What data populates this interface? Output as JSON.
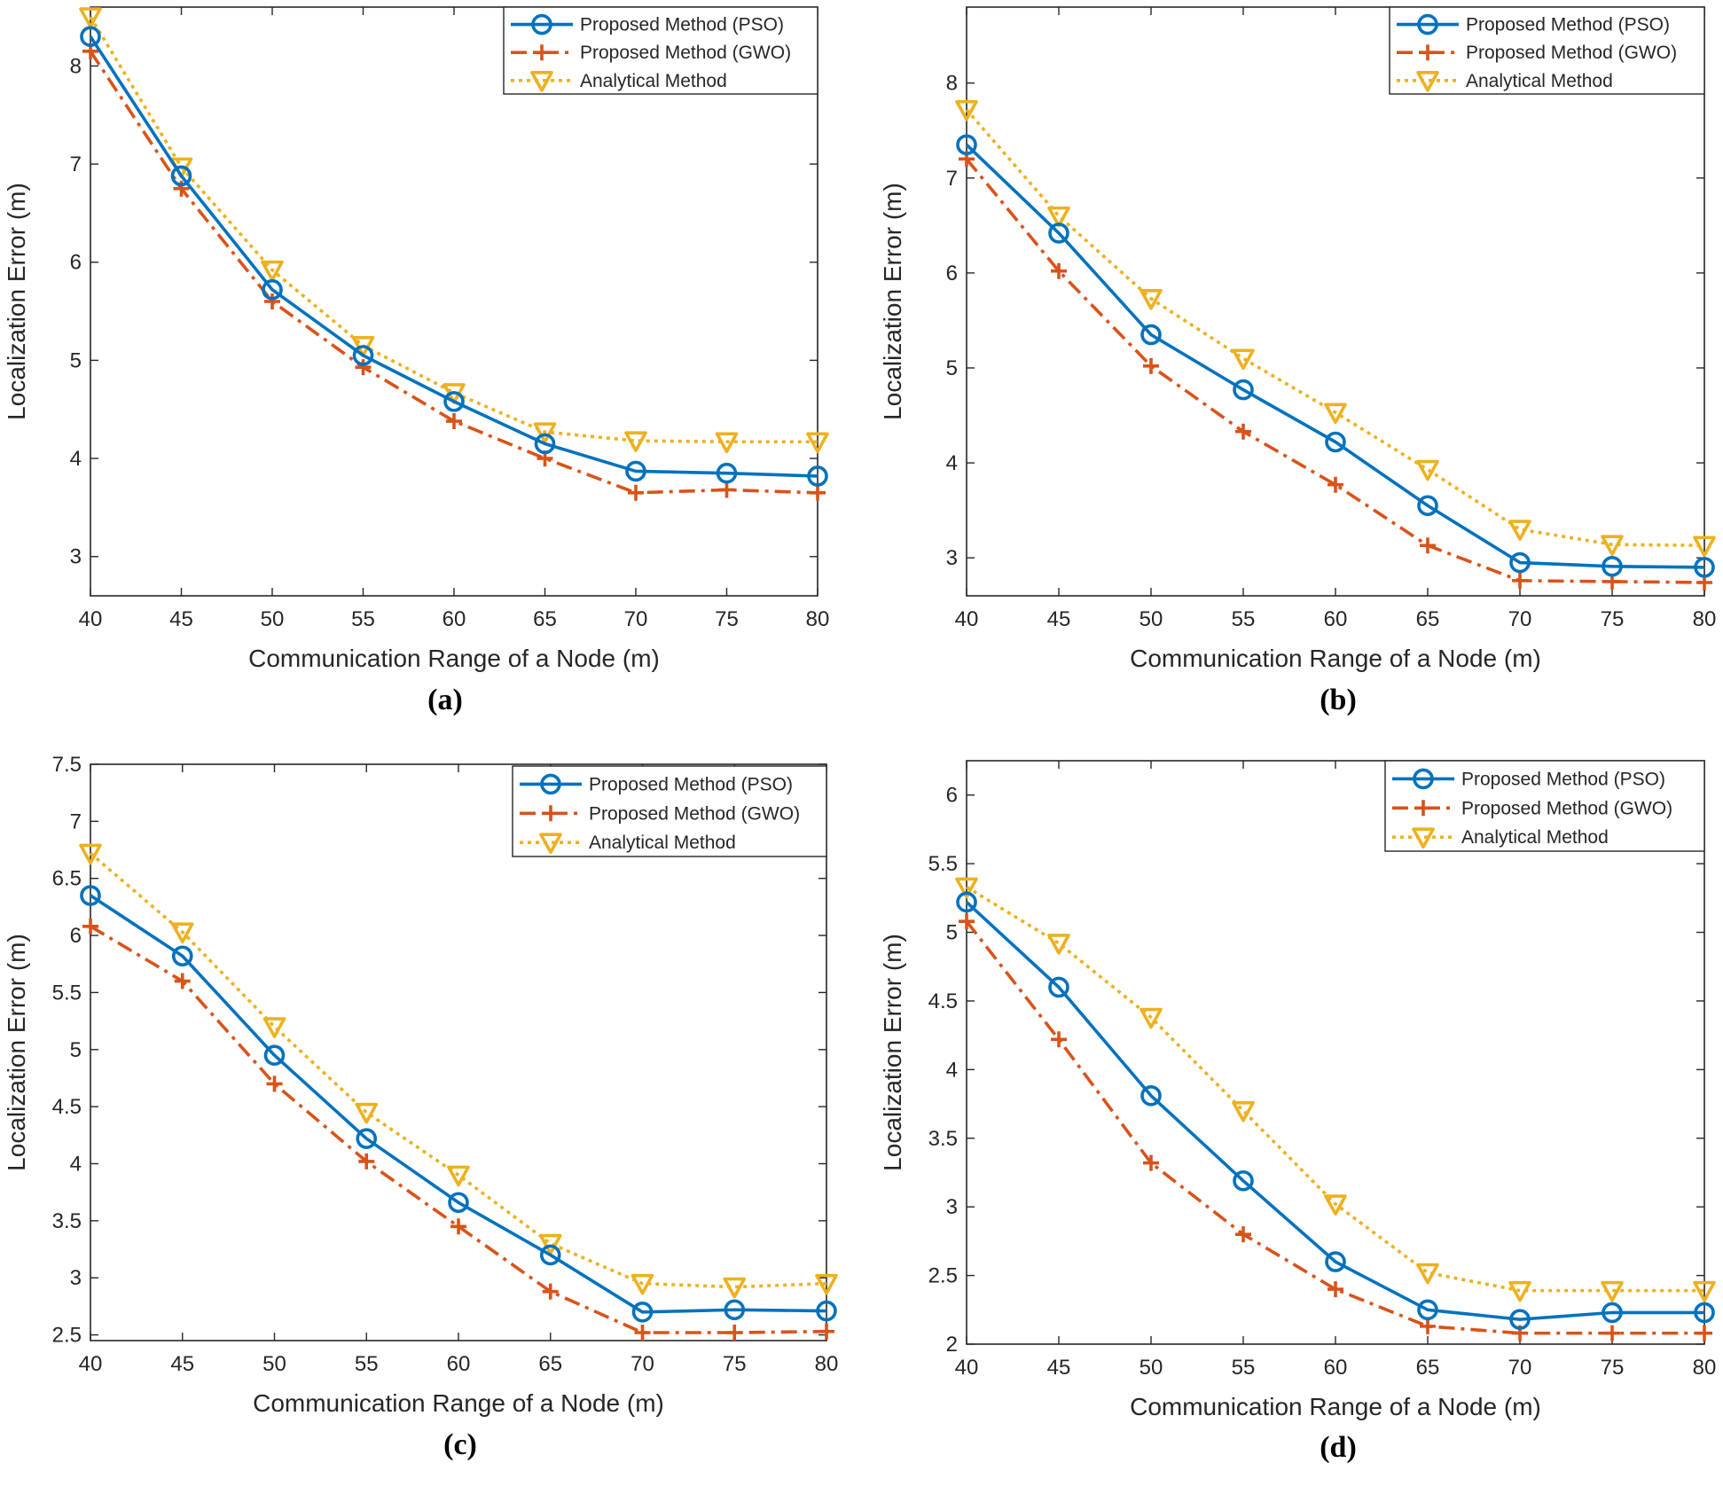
{
  "figure": {
    "x_label": "Communication Range of a Node (m)",
    "y_label": "Localization Error (m)"
  },
  "series_styles": [
    {
      "name": "Proposed Method (PSO)",
      "color": "#0072BD",
      "marker": "circle",
      "dash": "solid"
    },
    {
      "name": "Proposed Method (GWO)",
      "color": "#D95319",
      "marker": "plus",
      "dash": "dashdot"
    },
    {
      "name": "Analytical Method",
      "color": "#EDB120",
      "marker": "triangle-down",
      "dash": "dotted"
    }
  ],
  "chart_data": [
    {
      "type": "line",
      "caption": "(a)",
      "xlabel": "Communication Range of a Node (m)",
      "ylabel": "Localization Error (m)",
      "x": [
        40,
        45,
        50,
        55,
        60,
        65,
        70,
        75,
        80
      ],
      "xlim": [
        40,
        80
      ],
      "ylim": [
        2.6,
        8.6
      ],
      "xticks": [
        "40",
        "45",
        "50",
        "55",
        "60",
        "65",
        "70",
        "75",
        "80"
      ],
      "yticks": [
        "3",
        "4",
        "5",
        "6",
        "7",
        "8"
      ],
      "legend": "top-right",
      "grid": false,
      "series": [
        {
          "name": "Proposed Method (PSO)",
          "values": [
            8.3,
            6.88,
            5.72,
            5.05,
            4.58,
            4.15,
            3.87,
            3.85,
            3.82
          ]
        },
        {
          "name": "Proposed Method (GWO)",
          "values": [
            8.15,
            6.75,
            5.6,
            4.93,
            4.38,
            4.0,
            3.65,
            3.68,
            3.65
          ]
        },
        {
          "name": "Analytical Method",
          "values": [
            8.5,
            6.97,
            5.92,
            5.15,
            4.67,
            4.27,
            4.18,
            4.17,
            4.17
          ]
        }
      ]
    },
    {
      "type": "line",
      "caption": "(b)",
      "xlabel": "Communication Range of a Node (m)",
      "ylabel": "Localization Error (m)",
      "x": [
        40,
        45,
        50,
        55,
        60,
        65,
        70,
        75,
        80
      ],
      "xlim": [
        40,
        80
      ],
      "ylim": [
        2.6,
        8.8
      ],
      "xticks": [
        "40",
        "45",
        "50",
        "55",
        "60",
        "65",
        "70",
        "75",
        "80"
      ],
      "yticks": [
        "3",
        "4",
        "5",
        "6",
        "7",
        "8"
      ],
      "legend": "top-right",
      "grid": false,
      "series": [
        {
          "name": "Proposed Method (PSO)",
          "values": [
            7.35,
            6.42,
            5.35,
            4.77,
            4.22,
            3.55,
            2.95,
            2.91,
            2.9
          ]
        },
        {
          "name": "Proposed Method (GWO)",
          "values": [
            7.2,
            6.02,
            5.02,
            4.33,
            3.77,
            3.13,
            2.76,
            2.75,
            2.74
          ]
        },
        {
          "name": "Analytical Method",
          "values": [
            7.72,
            6.6,
            5.73,
            5.1,
            4.53,
            3.93,
            3.3,
            3.14,
            3.13
          ]
        }
      ]
    },
    {
      "type": "line",
      "caption": "(c)",
      "xlabel": "Communication Range of a Node (m)",
      "ylabel": "Localization Error (m)",
      "x": [
        40,
        45,
        50,
        55,
        60,
        65,
        70,
        75,
        80
      ],
      "xlim": [
        40,
        80
      ],
      "ylim": [
        2.45,
        7.5
      ],
      "xticks": [
        "40",
        "45",
        "50",
        "55",
        "60",
        "65",
        "70",
        "75",
        "80"
      ],
      "yticks": [
        "2.5",
        "3",
        "3.5",
        "4",
        "4.5",
        "5",
        "5.5",
        "6",
        "6.5",
        "7",
        "7.5"
      ],
      "legend": "top-right",
      "grid": false,
      "series": [
        {
          "name": "Proposed Method (PSO)",
          "values": [
            6.35,
            5.82,
            4.95,
            4.22,
            3.66,
            3.2,
            2.7,
            2.72,
            2.71
          ]
        },
        {
          "name": "Proposed Method (GWO)",
          "values": [
            6.08,
            5.6,
            4.7,
            4.02,
            3.45,
            2.88,
            2.52,
            2.52,
            2.53
          ]
        },
        {
          "name": "Analytical Method",
          "values": [
            6.72,
            6.03,
            5.2,
            4.45,
            3.9,
            3.3,
            2.95,
            2.92,
            2.95
          ]
        }
      ]
    },
    {
      "type": "line",
      "caption": "(d)",
      "xlabel": "Communication Range of a Node (m)",
      "ylabel": "Localization Error (m)",
      "x": [
        40,
        45,
        50,
        55,
        60,
        65,
        70,
        75,
        80
      ],
      "xlim": [
        40,
        80
      ],
      "ylim": [
        2.0,
        6.25
      ],
      "xticks": [
        "40",
        "45",
        "50",
        "55",
        "60",
        "65",
        "70",
        "75",
        "80"
      ],
      "yticks": [
        "2",
        "2.5",
        "3",
        "3.5",
        "4",
        "4.5",
        "5",
        "5.5",
        "6"
      ],
      "legend": "top-right",
      "grid": false,
      "series": [
        {
          "name": "Proposed Method (PSO)",
          "values": [
            5.22,
            4.6,
            3.81,
            3.19,
            2.6,
            2.25,
            2.18,
            2.23,
            2.23
          ]
        },
        {
          "name": "Proposed Method (GWO)",
          "values": [
            5.08,
            4.22,
            3.32,
            2.8,
            2.4,
            2.13,
            2.08,
            2.08,
            2.08
          ]
        },
        {
          "name": "Analytical Method",
          "values": [
            5.33,
            4.92,
            4.38,
            3.7,
            3.02,
            2.52,
            2.39,
            2.39,
            2.39
          ]
        }
      ]
    }
  ]
}
